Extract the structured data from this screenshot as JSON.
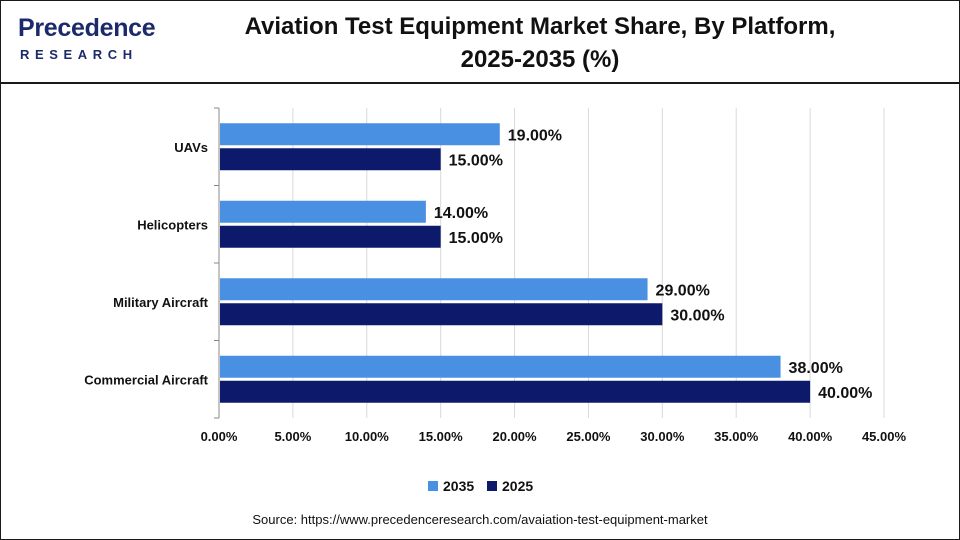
{
  "header": {
    "logo_brand": "Precedence",
    "logo_sub": "RESEARCH",
    "title_line1": "Aviation Test Equipment Market Share, By Platform,",
    "title_line2": "2025-2035 (%)"
  },
  "source": "Source: https://www.precedenceresearch.com/avaiation-test-equipment-market",
  "colors": {
    "series_2035": "#4a90e2",
    "series_2025": "#0d1a6b",
    "grid": "#d9d9d9",
    "axis": "#888888"
  },
  "chart_data": {
    "type": "bar",
    "orientation": "horizontal",
    "title": "Aviation Test Equipment Market Share, By Platform, 2025-2035 (%)",
    "categories": [
      "UAVs",
      "Helicopters",
      "Military Aircraft",
      "Commercial Aircraft"
    ],
    "series": [
      {
        "name": "2035",
        "values": [
          19,
          14,
          29,
          38
        ],
        "labels": [
          "19.00%",
          "14.00%",
          "29.00%",
          "38.00%"
        ]
      },
      {
        "name": "2025",
        "values": [
          15,
          15,
          30,
          40
        ],
        "labels": [
          "15.00%",
          "15.00%",
          "30.00%",
          "40.00%"
        ]
      }
    ],
    "xlim": [
      0,
      45
    ],
    "xticks": [
      0,
      5,
      10,
      15,
      20,
      25,
      30,
      35,
      40,
      45
    ],
    "xtick_labels": [
      "0.00%",
      "5.00%",
      "10.00%",
      "15.00%",
      "20.00%",
      "25.00%",
      "30.00%",
      "35.00%",
      "40.00%",
      "45.00%"
    ],
    "grid": true,
    "legend_position": "bottom"
  }
}
